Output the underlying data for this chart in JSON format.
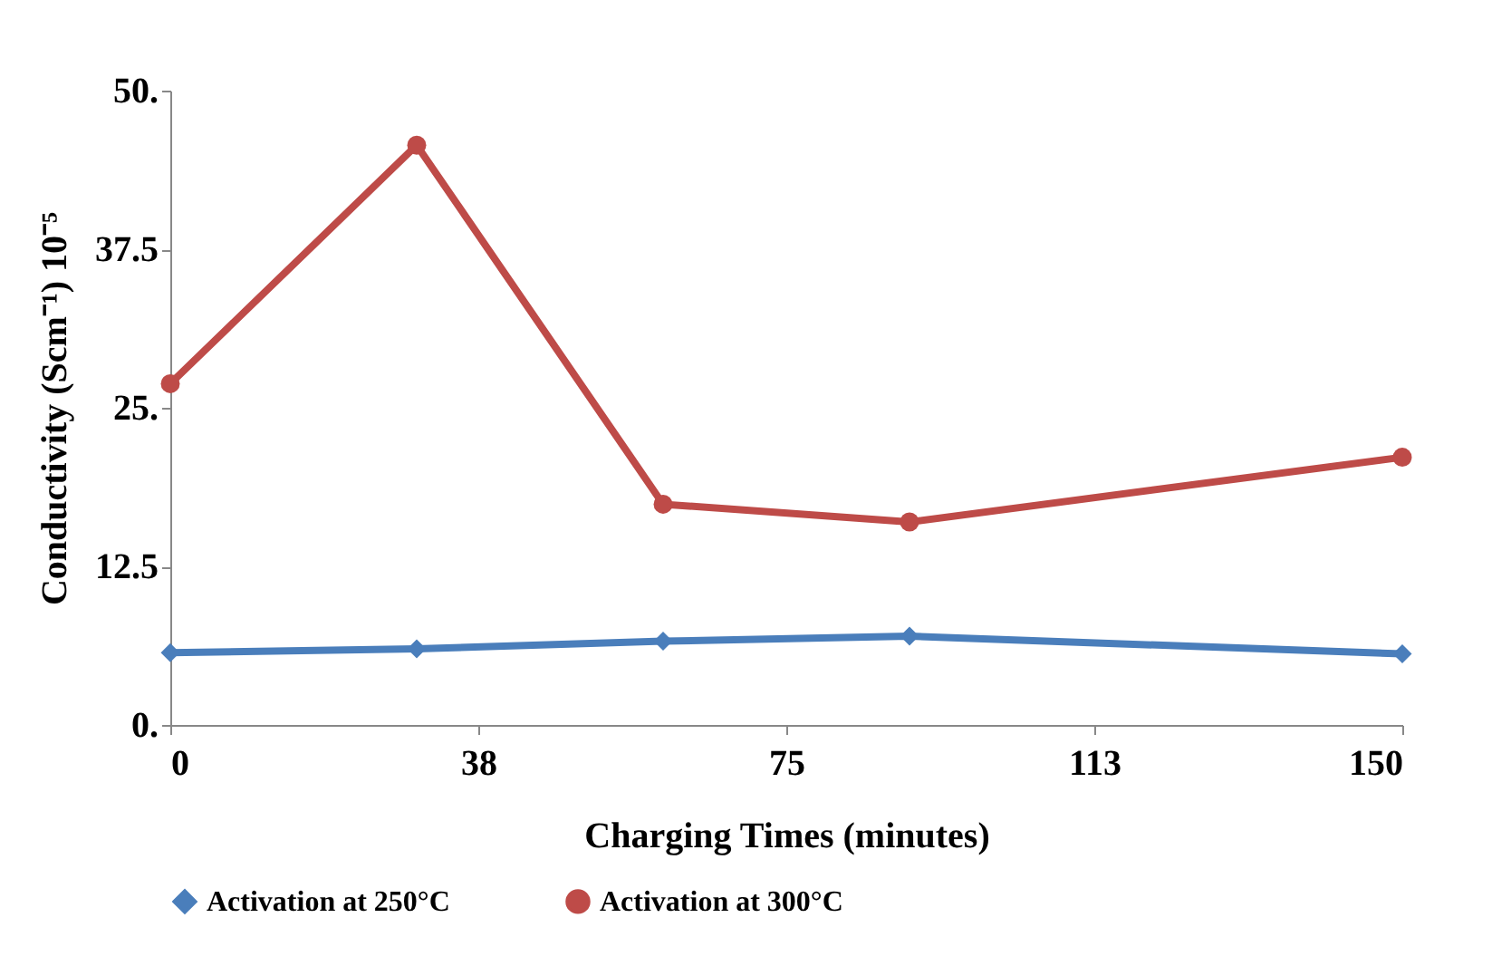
{
  "chart_data": {
    "type": "line",
    "xlabel": "Charging Times (minutes)",
    "ylabel": "Conductivity (Scm⁻¹) 10⁻⁵",
    "x": [
      0,
      30,
      60,
      90,
      150
    ],
    "series": [
      {
        "name": "Activation at 250°C",
        "color": "#4a7ebb",
        "marker": "diamond",
        "values": [
          5.7,
          6.0,
          6.6,
          7.0,
          5.6
        ]
      },
      {
        "name": "Activation at 300°C",
        "color": "#be4b48",
        "marker": "circle",
        "values": [
          26.9,
          45.7,
          17.4,
          16.0,
          21.1
        ]
      }
    ],
    "xlim": [
      0,
      150
    ],
    "xticks": [
      0,
      {
        "value": 37.5,
        "label": "38"
      },
      75,
      {
        "value": 112.5,
        "label": "113"
      },
      150
    ],
    "ylim": [
      0,
      50
    ],
    "yticks": [
      {
        "value": 0,
        "label": "0."
      },
      12.5,
      {
        "value": 25,
        "label": "25."
      },
      37.5,
      {
        "value": 50,
        "label": "50."
      }
    ],
    "grid": false,
    "legend": "bottom",
    "line_style": "solid"
  }
}
